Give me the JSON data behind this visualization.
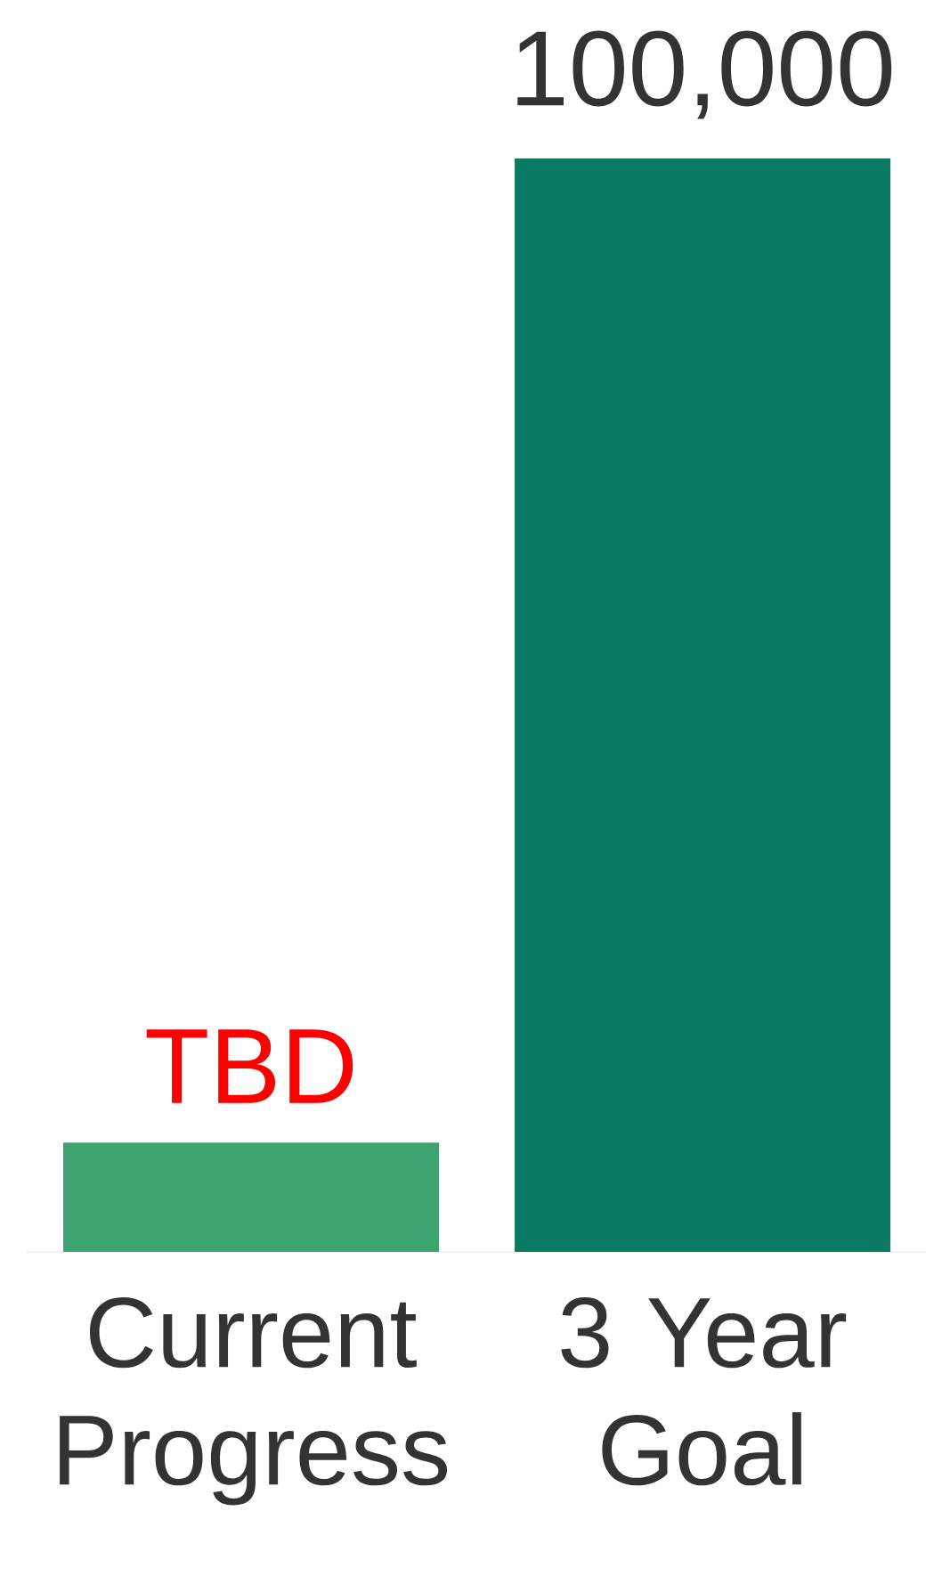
{
  "chart_data": {
    "type": "bar",
    "categories": [
      "Current Progress",
      "3 Year Goal"
    ],
    "values": [
      10000,
      100000
    ],
    "colors": [
      "#3da370",
      "#0b7a62"
    ],
    "value_labels": [
      "TBD",
      "100,000"
    ]
  }
}
